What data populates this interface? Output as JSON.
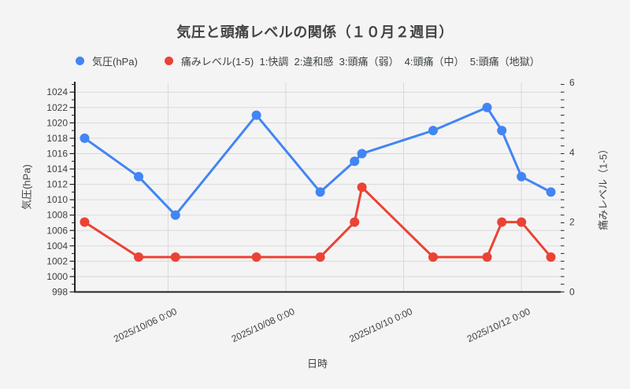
{
  "title": "気圧と頭痛レベルの関係（１０月２週目）",
  "legend": {
    "items": [
      {
        "key": "pressure",
        "label": "気圧(hPa)",
        "color": "#4285f4"
      },
      {
        "key": "pain",
        "label": "痛みレベル(1-5)  1:快調  2:違和感  3:頭痛（弱）  4:頭痛（中）  5:頭痛（地獄）",
        "color": "#ea4335"
      }
    ]
  },
  "axis_titles": {
    "x": "日時",
    "y_left": "気圧(hPa)",
    "y_right": "痛みレベル（1-5）"
  },
  "chart_data": {
    "type": "line",
    "title": "気圧と頭痛レベルの関係（１０月２週目）",
    "xlabel": "日時",
    "ylabel_left": "気圧(hPa)",
    "ylabel_right": "痛みレベル（1-5）",
    "legend_position": "top",
    "grid": true,
    "x": [
      "2025/10/04 14:00",
      "2025/10/05 12:00",
      "2025/10/06 3:00",
      "2025/10/07 12:00",
      "2025/10/08 14:00",
      "2025/10/09 4:00",
      "2025/10/09 7:00",
      "2025/10/10 12:00",
      "2025/10/11 10:00",
      "2025/10/11 16:00",
      "2025/10/12 0:00",
      "2025/10/12 12:00"
    ],
    "series": [
      {
        "key": "pressure",
        "name": "気圧(hPa)",
        "axis": "left",
        "color": "#4285f4",
        "values": [
          1018,
          1013,
          1008,
          1021,
          1011,
          1015,
          1016,
          1019,
          1022,
          1019,
          1013,
          1011
        ]
      },
      {
        "key": "pain",
        "name": "痛みレベル(1-5)",
        "axis": "right",
        "color": "#ea4335",
        "values": [
          2,
          1,
          1,
          1,
          1,
          2,
          3,
          1,
          1,
          2,
          2,
          1
        ]
      }
    ],
    "x_axis": {
      "range": [
        "2025/10/04 10:00",
        "2025/10/12 16:00"
      ],
      "tick_labels": [
        "2025/10/06 0:00",
        "2025/10/08 0:00",
        "2025/10/10 0:00",
        "2025/10/12 0:00"
      ]
    },
    "y_left": {
      "min": 998,
      "max": 1025.25,
      "ticks": [
        998,
        1000,
        1002,
        1004,
        1006,
        1008,
        1010,
        1012,
        1014,
        1016,
        1018,
        1020,
        1022,
        1024
      ]
    },
    "y_right": {
      "min": 0,
      "max": 6,
      "ticks": [
        0,
        2,
        4,
        6
      ]
    },
    "grid_color": "#d9d9d9",
    "axis_color": "#222222",
    "tick_label_color": "#3c4043",
    "background": "#f4f4f4"
  }
}
